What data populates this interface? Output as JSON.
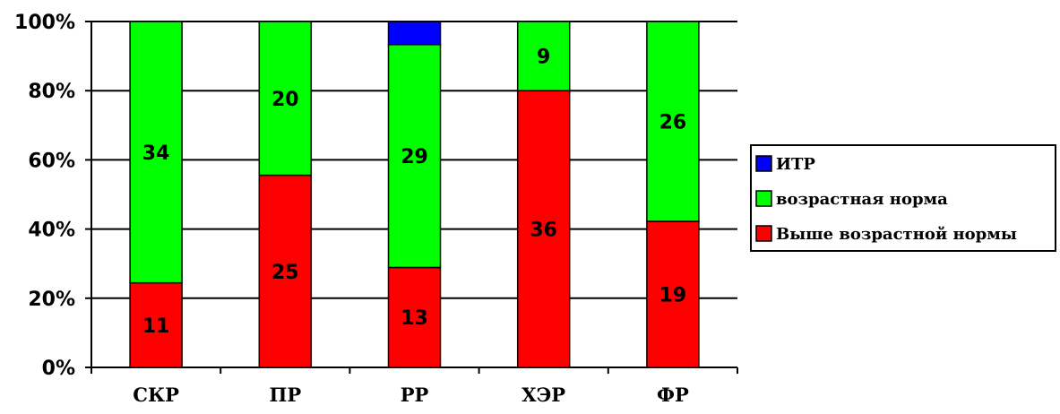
{
  "chart_data": {
    "type": "bar",
    "stacked": true,
    "normalized": true,
    "categories": [
      "СКР",
      "ПР",
      "РР",
      "ХЭР",
      "ФР"
    ],
    "series": [
      {
        "name": "Выше возрастной нормы",
        "color": "#ff0000",
        "values": [
          11,
          25,
          13,
          36,
          19
        ],
        "labels": [
          "11",
          "25",
          "13",
          "36",
          "19"
        ]
      },
      {
        "name": "возрастная норма",
        "color": "#00ff00",
        "values": [
          34,
          20,
          29,
          9,
          26
        ],
        "labels": [
          "34",
          "20",
          "29",
          "9",
          "26"
        ]
      },
      {
        "name": "ИТР",
        "color": "#0000ff",
        "values": [
          0,
          0,
          3,
          0,
          0
        ],
        "labels": [
          "",
          "",
          "",
          "",
          ""
        ]
      }
    ],
    "yticks": [
      "0%",
      "20%",
      "40%",
      "60%",
      "80%",
      "100%"
    ],
    "ylim": [
      0,
      100
    ],
    "grid": true,
    "legend": "right",
    "legend_order": [
      "ИТР",
      "возрастная норма",
      "Выше возрастной нормы"
    ]
  }
}
